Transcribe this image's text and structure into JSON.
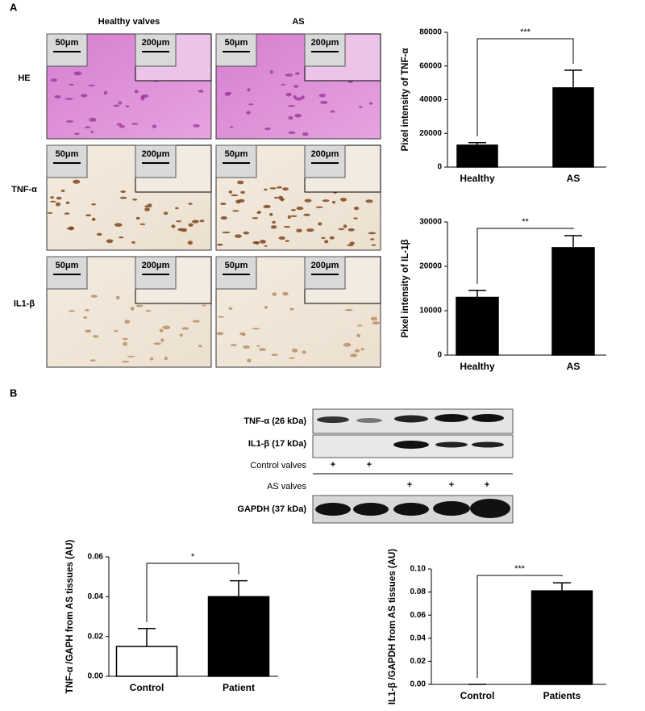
{
  "panel_labels": [
    "A",
    "B"
  ],
  "histology": {
    "columns": [
      "Healthy valves",
      "AS"
    ],
    "rows": [
      "HE",
      "TNF-α",
      "IL1-β"
    ],
    "panels": [
      {
        "scale": "50μm",
        "inset_scale": "200μm"
      },
      {
        "scale": "50μm",
        "inset_scale": "200μm"
      },
      {
        "scale": "50μm",
        "inset_scale": "200μm"
      },
      {
        "scale": "50μm",
        "inset_scale": "200μm"
      },
      {
        "scale": "50μm",
        "inset_scale": "200μm"
      },
      {
        "scale": "50μm",
        "inset_scale": "200μm"
      }
    ]
  },
  "blot": {
    "labels": [
      "TNF-α (26 kDa)",
      "IL1-β (17 kDa)",
      "Control valves",
      "AS valves",
      "GAPDH (37 kDa)"
    ],
    "control_lanes": [
      "+",
      "+"
    ],
    "as_lanes": [
      "+",
      "+",
      "+"
    ]
  },
  "chart_data": [
    {
      "type": "bar",
      "y_label": "Pixel intensity of TNF-α",
      "categories": [
        "Healthy",
        "AS"
      ],
      "values": [
        13000,
        47000
      ],
      "errors": [
        1500,
        10500
      ],
      "colors": [
        "#000000",
        "#000000"
      ],
      "ylim": [
        0,
        80000
      ],
      "yticks": [
        0,
        20000,
        40000,
        60000,
        80000
      ],
      "annotation": "***"
    },
    {
      "type": "bar",
      "y_label": "Pixel intensity  of IL-1β",
      "categories": [
        "Healthy",
        "AS"
      ],
      "values": [
        13000,
        24200
      ],
      "errors": [
        1600,
        2700
      ],
      "colors": [
        "#000000",
        "#000000"
      ],
      "ylim": [
        0,
        30000
      ],
      "yticks": [
        0,
        10000,
        20000,
        30000
      ],
      "annotation": "**"
    },
    {
      "type": "bar",
      "y_label": "TNF-α /GAPH from AS tissues (AU)",
      "categories": [
        "Control",
        "Patient"
      ],
      "values": [
        0.015,
        0.04
      ],
      "errors": [
        0.009,
        0.008
      ],
      "colors": [
        "#ffffff",
        "#000000"
      ],
      "ylim": [
        0,
        0.06
      ],
      "yticks": [
        {
          "value": 0,
          "label": "0.00"
        },
        {
          "value": 0.02,
          "label": "0.02"
        },
        {
          "value": 0.04,
          "label": "0.04"
        },
        {
          "value": 0.06,
          "label": "0.06"
        }
      ],
      "annotation": "*"
    },
    {
      "type": "bar",
      "y_label": "IL1-β /GAPDH from AS tissues (AU)",
      "categories": [
        "Control",
        "Patients"
      ],
      "values": [
        0,
        0.081
      ],
      "errors": [
        0,
        0.007
      ],
      "colors": [
        "#ffffff",
        "#000000"
      ],
      "ylim": [
        0,
        0.1
      ],
      "yticks": [
        {
          "value": 0,
          "label": "0.00"
        },
        {
          "value": 0.02,
          "label": "0.02"
        },
        {
          "value": 0.04,
          "label": "0.04"
        },
        {
          "value": 0.06,
          "label": "0.06"
        },
        {
          "value": 0.08,
          "label": "0.08"
        },
        {
          "value": 0.1,
          "label": "0.10"
        }
      ],
      "annotation": "***"
    }
  ]
}
